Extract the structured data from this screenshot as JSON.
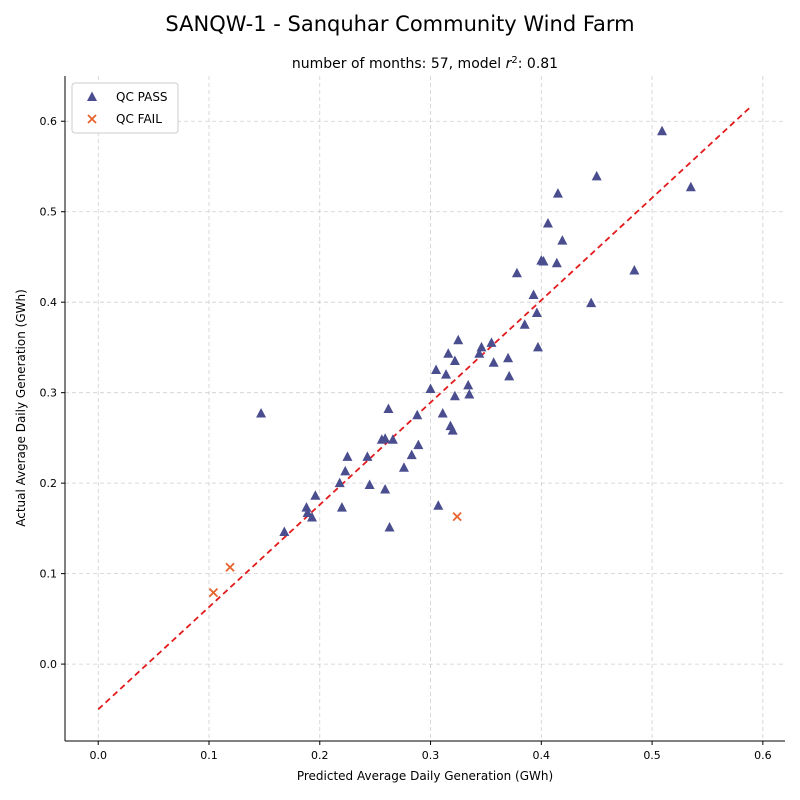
{
  "chart_data": {
    "type": "scatter",
    "title": "SANQW-1 - Sanquhar Community Wind Farm",
    "subtitle_prefix": "number of months: 57, model ",
    "subtitle_r": "r",
    "subtitle_sup": "2",
    "subtitle_suffix": ": 0.81",
    "xlabel": "Predicted Average Daily Generation (GWh)",
    "ylabel": "Actual Average Daily Generation (GWh)",
    "xlim": [
      -0.03,
      0.62
    ],
    "ylim": [
      -0.085,
      0.65
    ],
    "x_ticks": [
      0.0,
      0.1,
      0.2,
      0.3,
      0.4,
      0.5,
      0.6
    ],
    "x_tick_labels": [
      "0.0",
      "0.1",
      "0.2",
      "0.3",
      "0.4",
      "0.5",
      "0.6"
    ],
    "y_ticks": [
      0.0,
      0.1,
      0.2,
      0.3,
      0.4,
      0.5,
      0.6
    ],
    "y_tick_labels": [
      "0.0",
      "0.1",
      "0.2",
      "0.3",
      "0.4",
      "0.5",
      "0.6"
    ],
    "grid": true,
    "legend_position": "top-left",
    "fit_line": {
      "x": [
        0.0,
        0.59
      ],
      "y": [
        -0.05,
        0.617
      ],
      "color": "#e31a1c",
      "style": "dashed"
    },
    "series": [
      {
        "name": "QC PASS",
        "marker": "triangle",
        "color": "#4a4e8f",
        "points": [
          [
            0.147,
            0.277
          ],
          [
            0.168,
            0.146
          ],
          [
            0.188,
            0.173
          ],
          [
            0.189,
            0.167
          ],
          [
            0.193,
            0.162
          ],
          [
            0.196,
            0.186
          ],
          [
            0.218,
            0.2
          ],
          [
            0.22,
            0.173
          ],
          [
            0.223,
            0.213
          ],
          [
            0.225,
            0.229
          ],
          [
            0.243,
            0.229
          ],
          [
            0.245,
            0.198
          ],
          [
            0.256,
            0.248
          ],
          [
            0.259,
            0.249
          ],
          [
            0.259,
            0.193
          ],
          [
            0.262,
            0.282
          ],
          [
            0.263,
            0.151
          ],
          [
            0.266,
            0.248
          ],
          [
            0.276,
            0.217
          ],
          [
            0.283,
            0.231
          ],
          [
            0.288,
            0.275
          ],
          [
            0.289,
            0.242
          ],
          [
            0.3,
            0.304
          ],
          [
            0.305,
            0.325
          ],
          [
            0.307,
            0.175
          ],
          [
            0.311,
            0.277
          ],
          [
            0.314,
            0.32
          ],
          [
            0.316,
            0.343
          ],
          [
            0.318,
            0.263
          ],
          [
            0.32,
            0.258
          ],
          [
            0.322,
            0.296
          ],
          [
            0.322,
            0.335
          ],
          [
            0.325,
            0.358
          ],
          [
            0.334,
            0.308
          ],
          [
            0.335,
            0.298
          ],
          [
            0.344,
            0.343
          ],
          [
            0.346,
            0.35
          ],
          [
            0.355,
            0.355
          ],
          [
            0.357,
            0.333
          ],
          [
            0.37,
            0.338
          ],
          [
            0.371,
            0.318
          ],
          [
            0.378,
            0.432
          ],
          [
            0.385,
            0.375
          ],
          [
            0.393,
            0.408
          ],
          [
            0.396,
            0.388
          ],
          [
            0.397,
            0.35
          ],
          [
            0.4,
            0.446
          ],
          [
            0.402,
            0.445
          ],
          [
            0.406,
            0.487
          ],
          [
            0.414,
            0.443
          ],
          [
            0.415,
            0.52
          ],
          [
            0.419,
            0.468
          ],
          [
            0.445,
            0.399
          ],
          [
            0.45,
            0.539
          ],
          [
            0.484,
            0.435
          ],
          [
            0.509,
            0.589
          ],
          [
            0.535,
            0.527
          ]
        ]
      },
      {
        "name": "QC FAIL",
        "marker": "x",
        "color": "#e8622c",
        "points": [
          [
            0.104,
            0.079
          ],
          [
            0.119,
            0.107
          ],
          [
            0.324,
            0.163
          ]
        ]
      }
    ]
  }
}
